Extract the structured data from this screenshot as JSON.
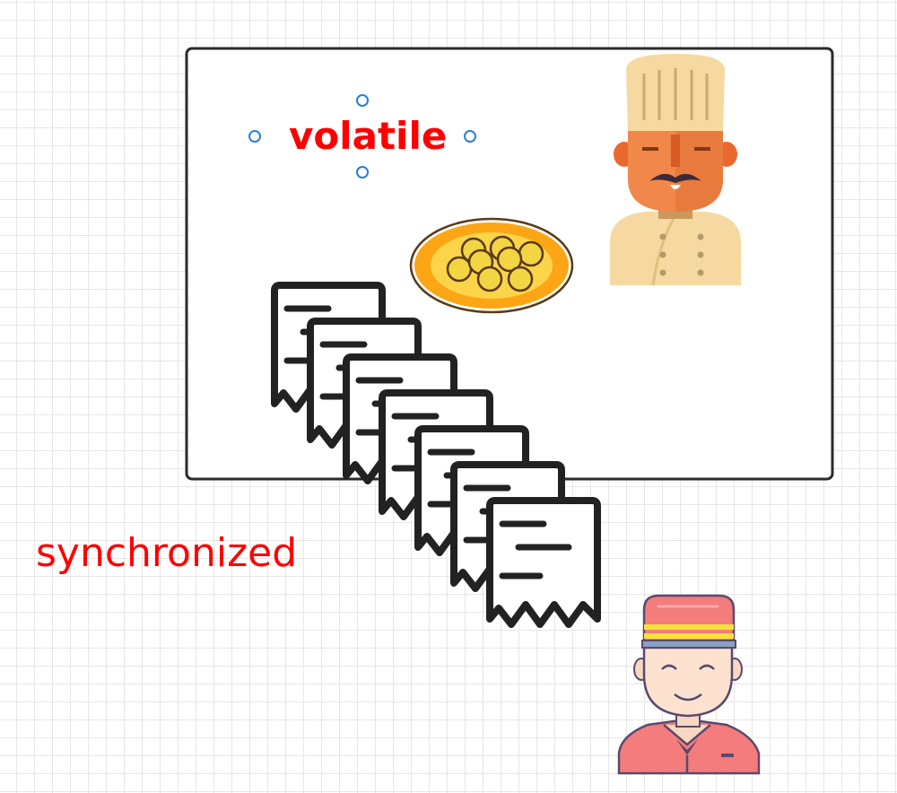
{
  "labels": {
    "volatile": "volatile",
    "synchronized": "synchronized"
  },
  "colors": {
    "label": "#ff0000",
    "selection_handle": "#2a7fd8",
    "frame_stroke": "#2b2b2b",
    "receipt_stroke": "#222222"
  },
  "icons": {
    "chef": "chef-icon",
    "dish": "dish-icon",
    "orders": "receipt-icon",
    "waiter": "waiter-icon"
  }
}
